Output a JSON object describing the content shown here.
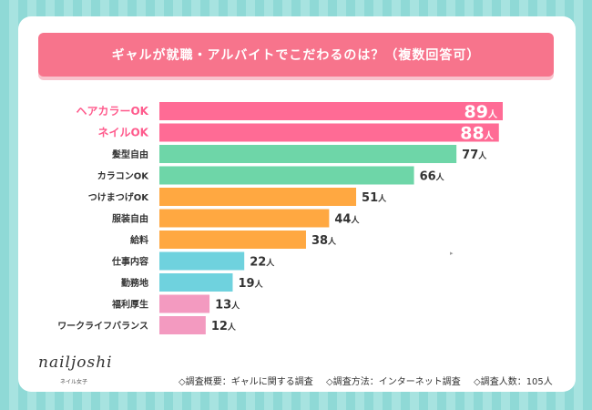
{
  "header": {
    "title": "ギャルが就職・アルバイトでこだわるのは？（複数回答可）"
  },
  "chart_data": {
    "type": "bar",
    "orientation": "horizontal",
    "title": "ギャルが就職・アルバイトでこだわるのは？（複数回答可）",
    "unit": "人",
    "categories": [
      "ヘアカラーOK",
      "ネイルOK",
      "髪型自由",
      "カラコンOK",
      "つけまつげOK",
      "服装自由",
      "給料",
      "仕事内容",
      "勤務地",
      "福利厚生",
      "ワークライフバランス"
    ],
    "values": [
      89,
      88,
      77,
      66,
      51,
      44,
      38,
      22,
      19,
      13,
      12
    ],
    "colors": [
      "#ff6b95",
      "#ff6b95",
      "#6ed6a8",
      "#6ed6a8",
      "#ffa841",
      "#ffa841",
      "#ffa841",
      "#6fd2de",
      "#6fd2de",
      "#f39ac0",
      "#f39ac0"
    ],
    "label_colors": [
      "#ff5a8c",
      "#ff5a8c",
      "#333333",
      "#333333",
      "#333333",
      "#333333",
      "#333333",
      "#333333",
      "#333333",
      "#333333",
      "#333333"
    ],
    "xlim": [
      0,
      89
    ]
  },
  "brand": {
    "logo": "nailjoshi",
    "sub": "ネイル女子"
  },
  "footer": {
    "overview": "◇調査概要：ギャルに関する調査",
    "method": "◇調査方法：インターネット調査",
    "respondents": "◇調査人数：105人"
  }
}
